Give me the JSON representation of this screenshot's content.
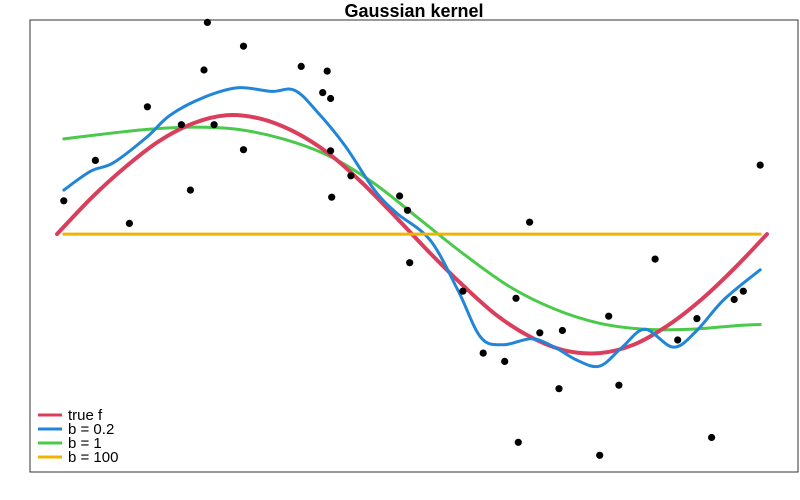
{
  "chart_data": {
    "type": "scatter",
    "title": "Gaussian kernel",
    "xlabel": "",
    "ylabel": "",
    "xlim": [
      0,
      6.28
    ],
    "ylim": [
      -2.0,
      1.8
    ],
    "grid": false,
    "legend": {
      "placement": "bottom-left",
      "entries": [
        {
          "label": "true f",
          "color": "#d93f5c"
        },
        {
          "label": "b =  0.2",
          "color": "#2186d8"
        },
        {
          "label": "b =  1",
          "color": "#4ac94a"
        },
        {
          "label": "b =  100",
          "color": "#f0b400"
        }
      ]
    },
    "points": [
      {
        "x": 0.06,
        "y": 0.28
      },
      {
        "x": 0.34,
        "y": 0.62
      },
      {
        "x": 0.64,
        "y": 0.09
      },
      {
        "x": 0.8,
        "y": 1.07
      },
      {
        "x": 1.1,
        "y": 0.92
      },
      {
        "x": 1.18,
        "y": 0.37
      },
      {
        "x": 1.3,
        "y": 1.38
      },
      {
        "x": 1.33,
        "y": 1.78
      },
      {
        "x": 1.39,
        "y": 0.92
      },
      {
        "x": 1.65,
        "y": 0.71
      },
      {
        "x": 1.65,
        "y": 1.58
      },
      {
        "x": 2.16,
        "y": 1.41
      },
      {
        "x": 2.35,
        "y": 1.19
      },
      {
        "x": 2.39,
        "y": 1.37
      },
      {
        "x": 2.42,
        "y": 1.14
      },
      {
        "x": 2.42,
        "y": 0.7
      },
      {
        "x": 2.43,
        "y": 0.31
      },
      {
        "x": 2.6,
        "y": 0.49
      },
      {
        "x": 3.03,
        "y": 0.32
      },
      {
        "x": 3.1,
        "y": 0.2
      },
      {
        "x": 3.12,
        "y": -0.24
      },
      {
        "x": 3.59,
        "y": -0.48
      },
      {
        "x": 3.77,
        "y": -1.0
      },
      {
        "x": 3.96,
        "y": -1.07
      },
      {
        "x": 4.06,
        "y": -0.54
      },
      {
        "x": 4.08,
        "y": -1.75
      },
      {
        "x": 4.18,
        "y": 0.1
      },
      {
        "x": 4.27,
        "y": -0.83
      },
      {
        "x": 4.44,
        "y": -1.3
      },
      {
        "x": 4.47,
        "y": -0.81
      },
      {
        "x": 4.8,
        "y": -1.86
      },
      {
        "x": 4.88,
        "y": -0.69
      },
      {
        "x": 4.97,
        "y": -1.27
      },
      {
        "x": 5.29,
        "y": -0.21
      },
      {
        "x": 5.49,
        "y": -0.89
      },
      {
        "x": 5.66,
        "y": -0.71
      },
      {
        "x": 5.79,
        "y": -1.71
      },
      {
        "x": 5.99,
        "y": -0.55
      },
      {
        "x": 6.07,
        "y": -0.48
      },
      {
        "x": 6.22,
        "y": 0.58
      }
    ],
    "series": [
      {
        "name": "true f",
        "color": "#d93f5c",
        "x": [
          0.0,
          0.3,
          0.6,
          0.9,
          1.2,
          1.5,
          1.8,
          2.1,
          2.4,
          2.7,
          3.0,
          3.3,
          3.6,
          3.9,
          4.2,
          4.5,
          4.8,
          5.1,
          5.4,
          5.7,
          6.0,
          6.28
        ],
        "y": [
          0.0,
          0.3,
          0.56,
          0.78,
          0.93,
          1.0,
          0.97,
          0.86,
          0.68,
          0.43,
          0.14,
          -0.16,
          -0.44,
          -0.69,
          -0.87,
          -0.98,
          -1.0,
          -0.93,
          -0.77,
          -0.55,
          -0.28,
          0.0
        ]
      },
      {
        "name": "b =  0.2",
        "color": "#2186d8",
        "x": [
          0.06,
          0.3,
          0.5,
          0.8,
          1.0,
          1.3,
          1.6,
          1.9,
          2.1,
          2.3,
          2.55,
          2.8,
          3.0,
          3.3,
          3.55,
          3.75,
          3.95,
          4.2,
          4.4,
          4.6,
          4.8,
          5.0,
          5.2,
          5.45,
          5.65,
          5.9,
          6.22
        ],
        "y": [
          0.37,
          0.53,
          0.6,
          0.82,
          1.0,
          1.15,
          1.23,
          1.2,
          1.21,
          1.03,
          0.74,
          0.38,
          0.18,
          -0.05,
          -0.48,
          -0.87,
          -0.93,
          -0.88,
          -0.95,
          -1.06,
          -1.11,
          -0.95,
          -0.8,
          -0.95,
          -0.82,
          -0.55,
          -0.3
        ]
      },
      {
        "name": "b =  1",
        "color": "#4ac94a",
        "x": [
          0.06,
          0.4,
          0.8,
          1.2,
          1.6,
          2.0,
          2.4,
          2.8,
          3.2,
          3.6,
          4.0,
          4.4,
          4.8,
          5.2,
          5.6,
          6.0,
          6.22
        ],
        "y": [
          0.8,
          0.84,
          0.88,
          0.9,
          0.88,
          0.8,
          0.66,
          0.43,
          0.13,
          -0.17,
          -0.44,
          -0.63,
          -0.75,
          -0.8,
          -0.8,
          -0.77,
          -0.76
        ]
      },
      {
        "name": "b =  100",
        "color": "#f0b400",
        "x": [
          0.06,
          6.22
        ],
        "y": [
          0.0,
          0.0
        ]
      }
    ]
  }
}
